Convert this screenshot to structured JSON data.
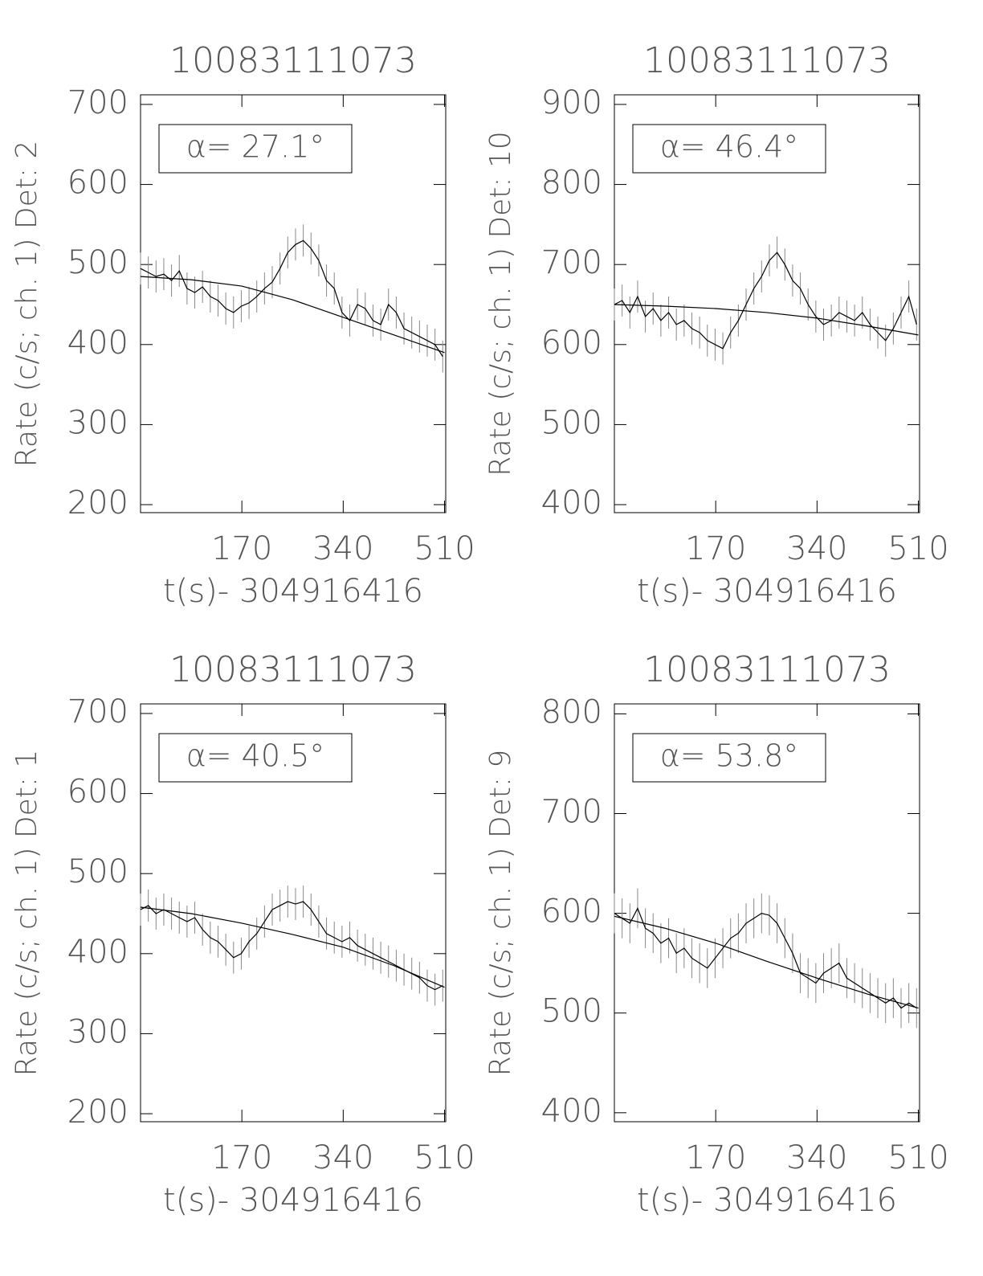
{
  "chart_data": [
    {
      "type": "line",
      "title": "10083111073",
      "xlabel": "t(s)- 304916416",
      "ylabel": "Rate (c/s; ch. 1) Det: 2",
      "annotation": "α= 27.1°",
      "xlim": [
        0,
        512
      ],
      "xticks": [
        170,
        340,
        510
      ],
      "ylim": [
        190,
        712
      ],
      "yticks": [
        200,
        300,
        400,
        500,
        600,
        700
      ],
      "x": [
        0,
        13,
        26,
        39,
        52,
        65,
        78,
        91,
        104,
        117,
        130,
        143,
        156,
        169,
        182,
        195,
        208,
        221,
        234,
        247,
        260,
        273,
        286,
        299,
        312,
        325,
        338,
        351,
        364,
        377,
        390,
        403,
        416,
        429,
        442,
        455,
        468,
        481,
        494,
        507
      ],
      "series": [
        {
          "color": "#000000",
          "error": 20,
          "values": [
            495,
            490,
            485,
            488,
            480,
            492,
            470,
            465,
            472,
            460,
            455,
            445,
            440,
            448,
            452,
            460,
            470,
            478,
            495,
            515,
            525,
            530,
            520,
            505,
            480,
            470,
            440,
            430,
            450,
            445,
            430,
            425,
            450,
            440,
            420,
            415,
            410,
            405,
            400,
            385
          ]
        },
        {
          "color": "#000000",
          "x": [
            0,
            85,
            170,
            255,
            340,
            425,
            510
          ],
          "values": [
            485,
            481,
            473,
            456,
            434,
            412,
            390
          ]
        }
      ]
    },
    {
      "type": "line",
      "title": "10083111073",
      "xlabel": "t(s)- 304916416",
      "ylabel": "Rate (c/s; ch. 1) Det: 10",
      "annotation": "α= 46.4°",
      "xlim": [
        0,
        512
      ],
      "xticks": [
        170,
        340,
        510
      ],
      "ylim": [
        390,
        912
      ],
      "yticks": [
        400,
        500,
        600,
        700,
        800,
        900
      ],
      "x": [
        0,
        13,
        26,
        39,
        52,
        65,
        78,
        91,
        104,
        117,
        130,
        143,
        156,
        169,
        182,
        195,
        208,
        221,
        234,
        247,
        260,
        273,
        286,
        299,
        312,
        325,
        338,
        351,
        364,
        377,
        390,
        403,
        416,
        429,
        442,
        455,
        468,
        481,
        494,
        507
      ],
      "series": [
        {
          "color": "#000000",
          "error": 20,
          "values": [
            650,
            655,
            640,
            660,
            635,
            645,
            630,
            640,
            625,
            630,
            620,
            615,
            605,
            600,
            595,
            615,
            630,
            650,
            670,
            685,
            705,
            715,
            700,
            680,
            670,
            650,
            635,
            625,
            630,
            640,
            635,
            630,
            640,
            625,
            615,
            605,
            620,
            640,
            660,
            625
          ]
        },
        {
          "color": "#000000",
          "x": [
            0,
            85,
            170,
            255,
            340,
            425,
            510
          ],
          "values": [
            650,
            648,
            645,
            640,
            633,
            623,
            612
          ]
        }
      ]
    },
    {
      "type": "line",
      "title": "10083111073",
      "xlabel": "t(s)- 304916416",
      "ylabel": "Rate (c/s; ch. 1) Det: 1",
      "annotation": "α= 40.5°",
      "xlim": [
        0,
        512
      ],
      "xticks": [
        170,
        340,
        510
      ],
      "ylim": [
        190,
        712
      ],
      "yticks": [
        200,
        300,
        400,
        500,
        600,
        700
      ],
      "x": [
        0,
        13,
        26,
        39,
        52,
        65,
        78,
        91,
        104,
        117,
        130,
        143,
        156,
        169,
        182,
        195,
        208,
        221,
        234,
        247,
        260,
        273,
        286,
        299,
        312,
        325,
        338,
        351,
        364,
        377,
        390,
        403,
        416,
        429,
        442,
        455,
        468,
        481,
        494,
        507
      ],
      "series": [
        {
          "color": "#000000",
          "error": 20,
          "values": [
            455,
            460,
            450,
            455,
            450,
            445,
            440,
            445,
            430,
            420,
            415,
            405,
            395,
            400,
            415,
            425,
            440,
            455,
            460,
            465,
            462,
            465,
            455,
            440,
            425,
            420,
            415,
            420,
            410,
            405,
            400,
            395,
            390,
            385,
            380,
            375,
            370,
            360,
            355,
            360
          ]
        },
        {
          "color": "#000000",
          "x": [
            0,
            85,
            170,
            255,
            340,
            425,
            510
          ],
          "values": [
            458,
            450,
            438,
            424,
            408,
            385,
            358
          ]
        }
      ]
    },
    {
      "type": "line",
      "title": "10083111073",
      "xlabel": "t(s)- 304916416",
      "ylabel": "Rate (c/s; ch. 1) Det: 9",
      "annotation": "α= 53.8°",
      "xlim": [
        0,
        512
      ],
      "xticks": [
        170,
        340,
        510
      ],
      "ylim": [
        391,
        810
      ],
      "yticks": [
        400,
        500,
        600,
        700,
        800
      ],
      "x": [
        0,
        13,
        26,
        39,
        52,
        65,
        78,
        91,
        104,
        117,
        130,
        143,
        156,
        169,
        182,
        195,
        208,
        221,
        234,
        247,
        260,
        273,
        286,
        299,
        312,
        325,
        338,
        351,
        364,
        377,
        390,
        403,
        416,
        429,
        442,
        455,
        468,
        481,
        494,
        507
      ],
      "series": [
        {
          "color": "#000000",
          "error": 20,
          "values": [
            600,
            595,
            590,
            605,
            585,
            580,
            570,
            575,
            560,
            565,
            555,
            550,
            545,
            555,
            565,
            575,
            580,
            590,
            595,
            600,
            598,
            590,
            575,
            560,
            540,
            535,
            530,
            540,
            545,
            550,
            535,
            530,
            525,
            520,
            515,
            510,
            515,
            505,
            510,
            505
          ]
        },
        {
          "color": "#000000",
          "x": [
            0,
            85,
            170,
            255,
            340,
            425,
            510
          ],
          "values": [
            597,
            585,
            570,
            552,
            535,
            519,
            505
          ]
        }
      ]
    }
  ]
}
